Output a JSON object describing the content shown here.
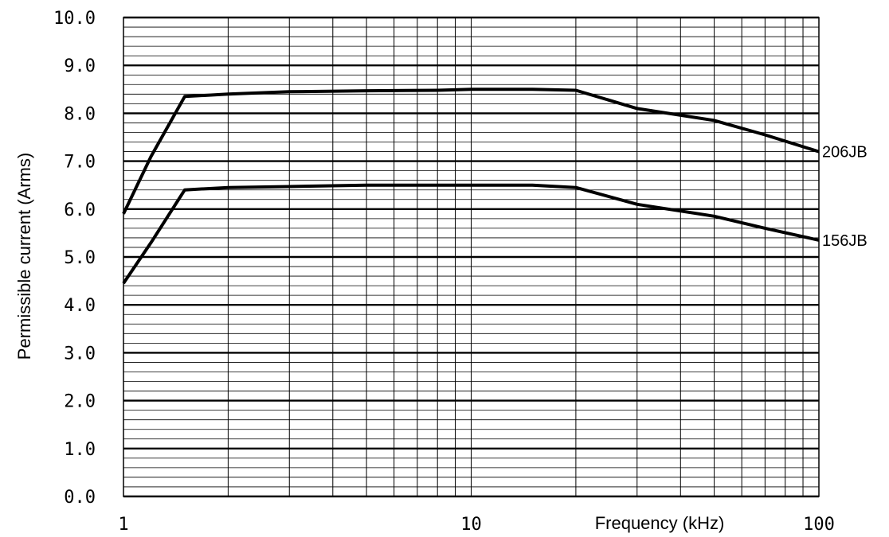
{
  "chart_data": {
    "type": "line",
    "title": "",
    "xlabel": "Frequency (kHz)",
    "ylabel": "Permissible current (Arms)",
    "x_scale": "log",
    "xlim": [
      1,
      100
    ],
    "ylim": [
      0,
      10
    ],
    "x_tick_labels": [
      "1",
      "10",
      "100"
    ],
    "x_tick_values": [
      1,
      10,
      100
    ],
    "y_tick_labels": [
      "0.0",
      "1.0",
      "2.0",
      "3.0",
      "4.0",
      "5.0",
      "6.0",
      "7.0",
      "8.0",
      "9.0",
      "10.0"
    ],
    "y_tick_values": [
      0,
      1,
      2,
      3,
      4,
      5,
      6,
      7,
      8,
      9,
      10
    ],
    "grid": true,
    "y_minor_step": 0.2,
    "series": [
      {
        "name": "206JB",
        "x": [
          1,
          1.2,
          1.5,
          2,
          3,
          5,
          8,
          10,
          15,
          20,
          30,
          50,
          70,
          100
        ],
        "y": [
          5.9,
          7.1,
          8.35,
          8.4,
          8.45,
          8.47,
          8.48,
          8.5,
          8.5,
          8.48,
          8.1,
          7.85,
          7.55,
          7.2
        ],
        "color": "#000000"
      },
      {
        "name": "156JB",
        "x": [
          1,
          1.2,
          1.5,
          2,
          3,
          5,
          8,
          10,
          15,
          20,
          30,
          50,
          70,
          100
        ],
        "y": [
          4.45,
          5.3,
          6.4,
          6.45,
          6.47,
          6.5,
          6.5,
          6.5,
          6.5,
          6.45,
          6.1,
          5.85,
          5.6,
          5.35
        ],
        "color": "#000000"
      }
    ]
  }
}
